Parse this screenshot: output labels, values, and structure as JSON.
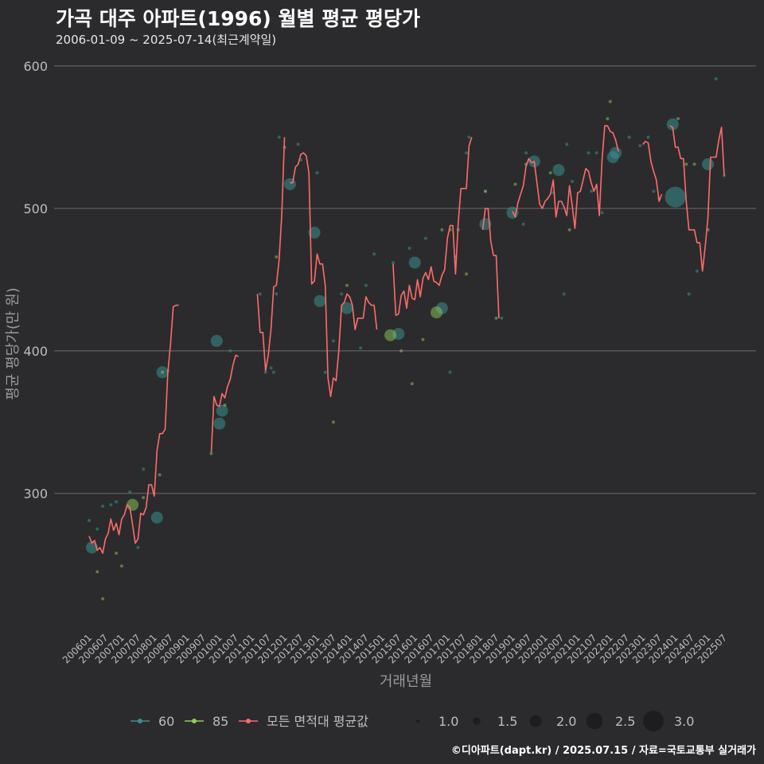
{
  "header": {
    "title": "가곡 대주 아파트(1996) 월별 평균 평당가",
    "subtitle": "2006-01-09 ~ 2025-07-14(최근계약일)"
  },
  "footer": {
    "credit": "©디아파트(dapt.kr) / 2025.07.15 / 자료=국토교통부 실거래가"
  },
  "colors": {
    "background": "#2b2b2d",
    "grid": "#6e6e70",
    "series_60": "#3a8f8f",
    "series_85": "#8fcc5a",
    "series_avg": "#ff6b6b",
    "text_muted": "#bdbdbd"
  },
  "chart_data": {
    "type": "line",
    "xlabel": "거래년월",
    "ylabel": "평균 평당가(만 원)",
    "ylim": [
      205,
      610
    ],
    "y_ticks": [
      300,
      400,
      500,
      600
    ],
    "x_range": [
      "2006-01",
      "2025-07"
    ],
    "x_ticks": [
      "200601",
      "200607",
      "200701",
      "200707",
      "200801",
      "200807",
      "200901",
      "200907",
      "201001",
      "201007",
      "201101",
      "201107",
      "201201",
      "201207",
      "201301",
      "201307",
      "201401",
      "201407",
      "201501",
      "201507",
      "201601",
      "201607",
      "201701",
      "201707",
      "201801",
      "201807",
      "201901",
      "201907",
      "202001",
      "202007",
      "202101",
      "202107",
      "202201",
      "202207",
      "202301",
      "202307",
      "202401",
      "202407",
      "202501",
      "202507"
    ],
    "grid": true,
    "legend": {
      "position": "bottom",
      "series_labels": [
        "60",
        "85",
        "모든 면적대 평균값"
      ],
      "size_labels": [
        "1.0",
        "1.5",
        "2.0",
        "2.5",
        "3.0"
      ],
      "size_values": [
        1.0,
        1.5,
        2.0,
        2.5,
        3.0
      ]
    },
    "avg_line": [
      [
        "2006-01",
        270
      ],
      [
        "2006-02",
        265
      ],
      [
        "2006-03",
        267
      ],
      [
        "2006-04",
        260
      ],
      [
        "2006-05",
        262
      ],
      [
        "2006-06",
        258
      ],
      [
        "2006-07",
        268
      ],
      [
        "2006-08",
        272
      ],
      [
        "2006-09",
        282
      ],
      [
        "2006-10",
        274
      ],
      [
        "2006-11",
        279
      ],
      [
        "2006-12",
        271
      ],
      [
        "2007-01",
        282
      ],
      [
        "2007-02",
        285
      ],
      [
        "2007-03",
        292
      ],
      [
        "2007-04",
        290
      ],
      [
        "2007-05",
        278
      ],
      [
        "2007-06",
        265
      ],
      [
        "2007-07",
        268
      ],
      [
        "2007-08",
        286
      ],
      [
        "2007-09",
        285
      ],
      [
        "2007-10",
        290
      ],
      [
        "2007-11",
        306
      ],
      [
        "2007-12",
        306
      ],
      [
        "2008-01",
        298
      ],
      [
        "2008-02",
        330
      ],
      [
        "2008-03",
        342
      ],
      [
        "2008-04",
        342
      ],
      [
        "2008-05",
        345
      ],
      [
        "2008-06",
        385
      ],
      [
        "2008-07",
        405
      ],
      [
        "2008-08",
        431
      ],
      [
        "2008-09",
        432
      ],
      [
        "2008-10",
        432
      ],
      null,
      [
        "2009-10",
        329
      ],
      [
        "2009-11",
        368
      ],
      [
        "2009-12",
        362
      ],
      [
        "2010-01",
        361
      ],
      [
        "2010-02",
        370
      ],
      [
        "2010-03",
        367
      ],
      [
        "2010-04",
        375
      ],
      [
        "2010-05",
        380
      ],
      [
        "2010-06",
        390
      ],
      [
        "2010-07",
        397
      ],
      [
        "2010-08",
        396
      ],
      null,
      [
        "2011-03",
        440
      ],
      [
        "2011-04",
        413
      ],
      [
        "2011-05",
        413
      ],
      [
        "2011-06",
        386
      ],
      [
        "2011-07",
        397
      ],
      [
        "2011-08",
        415
      ],
      [
        "2011-09",
        445
      ],
      [
        "2011-10",
        446
      ],
      [
        "2011-11",
        464
      ],
      [
        "2011-12",
        496
      ],
      [
        "2012-01",
        550
      ],
      null,
      [
        "2012-03",
        518
      ],
      [
        "2012-04",
        518
      ],
      [
        "2012-05",
        529
      ],
      [
        "2012-06",
        531
      ],
      [
        "2012-07",
        538
      ],
      [
        "2012-08",
        539
      ],
      [
        "2012-09",
        537
      ],
      [
        "2012-10",
        525
      ],
      [
        "2012-11",
        447
      ],
      [
        "2012-12",
        449
      ],
      [
        "2013-01",
        468
      ],
      [
        "2013-02",
        461
      ],
      [
        "2013-03",
        461
      ],
      [
        "2013-04",
        446
      ],
      [
        "2013-05",
        381
      ],
      [
        "2013-06",
        368
      ],
      [
        "2013-07",
        381
      ],
      [
        "2013-08",
        379
      ],
      [
        "2013-09",
        400
      ],
      [
        "2013-10",
        432
      ],
      [
        "2013-11",
        434
      ],
      [
        "2013-12",
        440
      ],
      [
        "2014-01",
        438
      ],
      [
        "2014-02",
        432
      ],
      [
        "2014-03",
        415
      ],
      [
        "2014-04",
        423
      ],
      [
        "2014-05",
        423
      ],
      [
        "2014-06",
        423
      ],
      [
        "2014-07",
        438
      ],
      [
        "2014-08",
        434
      ],
      [
        "2014-09",
        432
      ],
      [
        "2014-10",
        432
      ],
      [
        "2014-11",
        415
      ],
      null,
      [
        "2015-05",
        461
      ],
      [
        "2015-06",
        425
      ],
      [
        "2015-07",
        426
      ],
      [
        "2015-08",
        439
      ],
      [
        "2015-09",
        442
      ],
      [
        "2015-10",
        430
      ],
      [
        "2015-11",
        446
      ],
      [
        "2015-12",
        437
      ],
      [
        "2016-01",
        436
      ],
      [
        "2016-02",
        450
      ],
      [
        "2016-03",
        438
      ],
      [
        "2016-04",
        451
      ],
      [
        "2016-05",
        455
      ],
      [
        "2016-06",
        450
      ],
      [
        "2016-07",
        459
      ],
      [
        "2016-08",
        449
      ],
      [
        "2016-09",
        448
      ],
      [
        "2016-10",
        446
      ],
      [
        "2016-11",
        453
      ],
      [
        "2016-12",
        457
      ],
      [
        "2017-01",
        479
      ],
      [
        "2017-02",
        488
      ],
      [
        "2017-03",
        488
      ],
      [
        "2017-04",
        454
      ],
      [
        "2017-05",
        490
      ],
      [
        "2017-06",
        514
      ],
      [
        "2017-07",
        514
      ],
      [
        "2017-08",
        514
      ],
      [
        "2017-09",
        544
      ],
      [
        "2017-10",
        550
      ],
      null,
      [
        "2018-02",
        485
      ],
      [
        "2018-03",
        500
      ],
      [
        "2018-04",
        500
      ],
      [
        "2018-05",
        477
      ],
      [
        "2018-06",
        467
      ],
      [
        "2018-07",
        467
      ],
      [
        "2018-08",
        423
      ],
      null,
      [
        "2019-01",
        498
      ],
      [
        "2019-02",
        494
      ],
      [
        "2019-03",
        504
      ],
      [
        "2019-04",
        510
      ],
      [
        "2019-05",
        516
      ],
      [
        "2019-06",
        530
      ],
      [
        "2019-07",
        535
      ],
      [
        "2019-08",
        532
      ],
      [
        "2019-09",
        533
      ],
      [
        "2019-10",
        518
      ],
      [
        "2019-11",
        503
      ],
      [
        "2019-12",
        500
      ],
      [
        "2020-01",
        505
      ],
      [
        "2020-02",
        507
      ],
      [
        "2020-03",
        510
      ],
      [
        "2020-04",
        520
      ],
      [
        "2020-05",
        494
      ],
      [
        "2020-06",
        505
      ],
      [
        "2020-07",
        505
      ],
      [
        "2020-08",
        501
      ],
      [
        "2020-09",
        495
      ],
      [
        "2020-10",
        516
      ],
      [
        "2020-11",
        502
      ],
      [
        "2020-12",
        486
      ],
      [
        "2021-01",
        511
      ],
      [
        "2021-02",
        512
      ],
      [
        "2021-03",
        520
      ],
      [
        "2021-04",
        528
      ],
      [
        "2021-05",
        526
      ],
      [
        "2021-06",
        518
      ],
      [
        "2021-07",
        512
      ],
      [
        "2021-08",
        517
      ],
      [
        "2021-09",
        495
      ],
      [
        "2021-10",
        534
      ],
      [
        "2021-11",
        558
      ],
      [
        "2021-12",
        558
      ],
      [
        "2022-01",
        554
      ],
      [
        "2022-02",
        553
      ],
      [
        "2022-03",
        548
      ],
      [
        "2022-04",
        540
      ],
      null,
      [
        "2023-01",
        545
      ],
      [
        "2023-02",
        547
      ],
      [
        "2023-03",
        546
      ],
      [
        "2023-04",
        533
      ],
      [
        "2023-05",
        526
      ],
      [
        "2023-06",
        520
      ],
      [
        "2023-07",
        505
      ],
      [
        "2023-08",
        510
      ],
      null,
      [
        "2023-11",
        558
      ],
      [
        "2023-12",
        557
      ],
      [
        "2024-01",
        543
      ],
      [
        "2024-02",
        543
      ],
      [
        "2024-03",
        535
      ],
      [
        "2024-04",
        535
      ],
      [
        "2024-05",
        505
      ],
      [
        "2024-06",
        485
      ],
      [
        "2024-07",
        485
      ],
      [
        "2024-08",
        485
      ],
      [
        "2024-09",
        476
      ],
      [
        "2024-10",
        476
      ],
      [
        "2024-11",
        456
      ],
      [
        "2024-12",
        473
      ],
      [
        "2025-01",
        493
      ],
      [
        "2025-02",
        536
      ],
      [
        "2025-03",
        536
      ],
      [
        "2025-04",
        536
      ],
      [
        "2025-05",
        548
      ],
      [
        "2025-06",
        557
      ],
      [
        "2025-07",
        523
      ]
    ],
    "points_60": [
      [
        "2006-01",
        281,
        1.0
      ],
      [
        "2006-02",
        262,
        2.0
      ],
      [
        "2006-04",
        275,
        1.0
      ],
      [
        "2006-06",
        291,
        1.0
      ],
      [
        "2006-09",
        292,
        1.0
      ],
      [
        "2006-11",
        294,
        1.0
      ],
      [
        "2007-04",
        301,
        1.0
      ],
      [
        "2007-07",
        262,
        1.0
      ],
      [
        "2007-09",
        317,
        1.0
      ],
      [
        "2008-02",
        283,
        2.0
      ],
      [
        "2008-04",
        385,
        2.0
      ],
      [
        "2008-06",
        386,
        1.0
      ],
      [
        "2009-12",
        407,
        2.0
      ],
      [
        "2010-01",
        349,
        2.0
      ],
      [
        "2010-02",
        358,
        2.0
      ],
      [
        "2010-05",
        400,
        1.0
      ],
      [
        "2011-04",
        440,
        1.0
      ],
      [
        "2011-06",
        385,
        1.0
      ],
      [
        "2011-08",
        388,
        1.0
      ],
      [
        "2011-09",
        385,
        1.0
      ],
      [
        "2011-10",
        440,
        1.0
      ],
      [
        "2011-11",
        550,
        1.0
      ],
      [
        "2012-03",
        517,
        2.0
      ],
      [
        "2012-06",
        545,
        1.0
      ],
      [
        "2012-07",
        534,
        1.0
      ],
      [
        "2012-12",
        483,
        2.0
      ],
      [
        "2013-01",
        525,
        1.0
      ],
      [
        "2013-02",
        435,
        2.0
      ],
      [
        "2013-04",
        385,
        1.0
      ],
      [
        "2013-07",
        407,
        1.0
      ],
      [
        "2013-10",
        440,
        1.0
      ],
      [
        "2013-12",
        430,
        2.0
      ],
      [
        "2014-05",
        402,
        1.0
      ],
      [
        "2014-07",
        446,
        1.0
      ],
      [
        "2014-10",
        468,
        1.0
      ],
      [
        "2015-05",
        462,
        1.0
      ],
      [
        "2015-07",
        412,
        2.0
      ],
      [
        "2015-11",
        472,
        1.0
      ],
      [
        "2016-01",
        462,
        2.0
      ],
      [
        "2016-05",
        479,
        1.0
      ],
      [
        "2016-11",
        430,
        2.0
      ],
      [
        "2017-02",
        385,
        1.0
      ],
      [
        "2017-08",
        539,
        1.0
      ],
      [
        "2017-09",
        550,
        1.0
      ],
      [
        "2018-03",
        512,
        1.0
      ],
      [
        "2018-03",
        489,
        2.0
      ],
      [
        "2018-09",
        423,
        1.0
      ],
      [
        "2019-01",
        497,
        2.0
      ],
      [
        "2019-05",
        489,
        1.0
      ],
      [
        "2019-06",
        539,
        1.0
      ],
      [
        "2019-09",
        533,
        2.0
      ],
      [
        "2020-04",
        511,
        1.0
      ],
      [
        "2020-06",
        527,
        2.0
      ],
      [
        "2020-08",
        440,
        1.0
      ],
      [
        "2020-09",
        545,
        1.0
      ],
      [
        "2020-11",
        519,
        1.0
      ],
      [
        "2021-05",
        539,
        1.0
      ],
      [
        "2021-06",
        512,
        1.0
      ],
      [
        "2021-08",
        539,
        1.0
      ],
      [
        "2021-10",
        497,
        1.0
      ],
      [
        "2022-02",
        536,
        2.0
      ],
      [
        "2022-03",
        539,
        2.0
      ],
      [
        "2022-08",
        550,
        1.0
      ],
      [
        "2022-12",
        544,
        1.0
      ],
      [
        "2023-03",
        550,
        1.0
      ],
      [
        "2023-05",
        512,
        1.0
      ],
      [
        "2023-07",
        507,
        1.0
      ],
      [
        "2023-12",
        559,
        2.0
      ],
      [
        "2024-01",
        508,
        3.0
      ],
      [
        "2024-06",
        440,
        1.0
      ],
      [
        "2024-09",
        456,
        1.0
      ],
      [
        "2025-01",
        531,
        2.0
      ],
      [
        "2025-04",
        591,
        1.0
      ],
      [
        "2025-07",
        523,
        1.0
      ]
    ],
    "points_85": [
      [
        "2006-04",
        245,
        1.0
      ],
      [
        "2006-06",
        226,
        1.0
      ],
      [
        "2006-11",
        258,
        1.0
      ],
      [
        "2007-01",
        249,
        1.0
      ],
      [
        "2007-05",
        292,
        2.0
      ],
      [
        "2007-09",
        297,
        1.0
      ],
      [
        "2008-03",
        313,
        1.0
      ],
      [
        "2008-04",
        385,
        1.0
      ],
      [
        "2009-10",
        328,
        1.0
      ],
      [
        "2010-03",
        362,
        1.0
      ],
      [
        "2011-10",
        466,
        1.0
      ],
      [
        "2012-01",
        543,
        1.0
      ],
      [
        "2013-07",
        350,
        1.0
      ],
      [
        "2013-12",
        446,
        1.0
      ],
      [
        "2015-04",
        411,
        2.0
      ],
      [
        "2015-08",
        400,
        1.0
      ],
      [
        "2015-12",
        377,
        1.0
      ],
      [
        "2016-04",
        408,
        1.0
      ],
      [
        "2016-09",
        427,
        2.0
      ],
      [
        "2016-11",
        485,
        1.0
      ],
      [
        "2017-02",
        485,
        1.0
      ],
      [
        "2017-04",
        466,
        1.0
      ],
      [
        "2017-05",
        485,
        1.0
      ],
      [
        "2017-08",
        454,
        1.0
      ],
      [
        "2018-03",
        512,
        1.0
      ],
      [
        "2018-07",
        423,
        1.0
      ],
      [
        "2019-02",
        517,
        1.0
      ],
      [
        "2019-06",
        531,
        1.0
      ],
      [
        "2020-03",
        525,
        1.0
      ],
      [
        "2020-10",
        485,
        1.0
      ],
      [
        "2021-12",
        563,
        1.0
      ],
      [
        "2022-01",
        575,
        1.0
      ],
      [
        "2024-02",
        563,
        1.0
      ],
      [
        "2024-05",
        531,
        1.0
      ],
      [
        "2024-08",
        531,
        1.0
      ],
      [
        "2025-01",
        485,
        1.0
      ]
    ]
  }
}
